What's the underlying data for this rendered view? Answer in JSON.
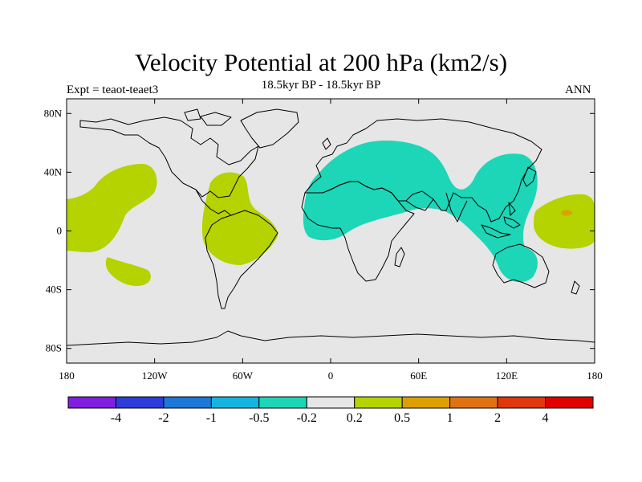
{
  "title": "Velocity Potential at 200 hPa (km2/s)",
  "subtitle": "18.5kyr BP - 18.5kyr BP",
  "left_label": "Expt = teaot-teaet3",
  "right_label": "ANN",
  "map": {
    "projection": "cylindrical-equidistant",
    "lon_range": [
      -180,
      180
    ],
    "lat_range": [
      -90,
      90
    ],
    "ocean_color": "#e6e6e6",
    "coast_color": "#000000",
    "lon_ticks": [
      {
        "value": -180,
        "label": "180"
      },
      {
        "value": -120,
        "label": "120W"
      },
      {
        "value": -60,
        "label": "60W"
      },
      {
        "value": 0,
        "label": "0"
      },
      {
        "value": 60,
        "label": "60E"
      },
      {
        "value": 120,
        "label": "120E"
      },
      {
        "value": 180,
        "label": "180"
      }
    ],
    "lat_ticks": [
      {
        "value": 80,
        "label": "80N"
      },
      {
        "value": 40,
        "label": "40N"
      },
      {
        "value": 0,
        "label": "0"
      },
      {
        "value": -40,
        "label": "40S"
      },
      {
        "value": -80,
        "label": "80S"
      }
    ],
    "anomaly_regions": [
      {
        "name": "north-pacific-positive",
        "level": "0.2 to 0.5",
        "color": "#b4d300"
      },
      {
        "name": "central-america-positive",
        "level": "0.2 to 0.5",
        "color": "#b4d300"
      },
      {
        "name": "south-pacific-positive",
        "level": "0.2 to 0.5",
        "color": "#b4d300"
      },
      {
        "name": "western-pacific-positive",
        "level": "0.2 to 0.5",
        "color": "#b4d300"
      },
      {
        "name": "western-pacific-core",
        "level": "0.5 to 1",
        "color": "#dca100"
      },
      {
        "name": "afro-eurasia-negative",
        "level": "-0.5 to -0.2",
        "color": "#1cd6b7"
      }
    ]
  },
  "colorbar": {
    "colors": [
      "#7f1fe0",
      "#2e3cd9",
      "#1e78d8",
      "#14b4e0",
      "#1cd6b7",
      "#e6e6e6",
      "#b4d300",
      "#dca100",
      "#e07214",
      "#e0370e",
      "#e00000"
    ],
    "labels": [
      "-4",
      "-2",
      "-1",
      "-0.5",
      "-0.2",
      "0.2",
      "0.5",
      "1",
      "2",
      "4"
    ]
  }
}
